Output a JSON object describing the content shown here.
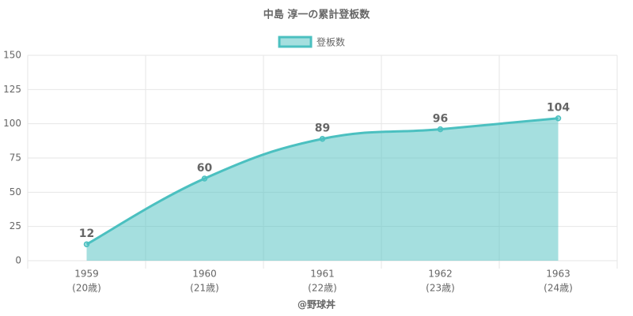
{
  "chart_data": {
    "type": "line",
    "title": "中島 淳一の累計登板数",
    "categories": [
      "1959",
      "1960",
      "1961",
      "1962",
      "1963"
    ],
    "category_sublabels": [
      "(20歳)",
      "(21歳)",
      "(22歳)",
      "(23歳)",
      "(24歳)"
    ],
    "series": [
      {
        "name": "登板数",
        "color": "#4bc0c0",
        "values": [
          12,
          60,
          89,
          96,
          104
        ]
      }
    ],
    "x_label": "@野球丼",
    "ylim": [
      0,
      150
    ],
    "yticks": [
      0,
      25,
      50,
      75,
      100,
      125,
      150
    ],
    "grid": true,
    "fill": true,
    "legend": "top"
  }
}
